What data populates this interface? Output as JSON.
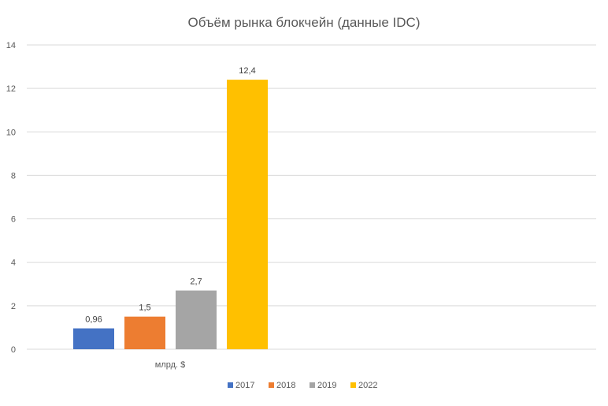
{
  "chart_data": {
    "type": "bar",
    "title": "Объём рынка блокчейн (данные IDC)",
    "categories": [
      "млрд. $"
    ],
    "series": [
      {
        "name": "2017",
        "values": [
          0.96
        ],
        "label": "0,96",
        "color": "#4472C4"
      },
      {
        "name": "2018",
        "values": [
          1.5
        ],
        "label": "1,5",
        "color": "#ED7D31"
      },
      {
        "name": "2019",
        "values": [
          2.7
        ],
        "label": "2,7",
        "color": "#A5A5A5"
      },
      {
        "name": "2022",
        "values": [
          12.4
        ],
        "label": "12,4",
        "color": "#FFC000"
      }
    ],
    "yticks": [
      "0",
      "2",
      "4",
      "6",
      "8",
      "10",
      "12",
      "14"
    ],
    "ylim": [
      0,
      14
    ],
    "grid": true,
    "legend": "bottom"
  }
}
